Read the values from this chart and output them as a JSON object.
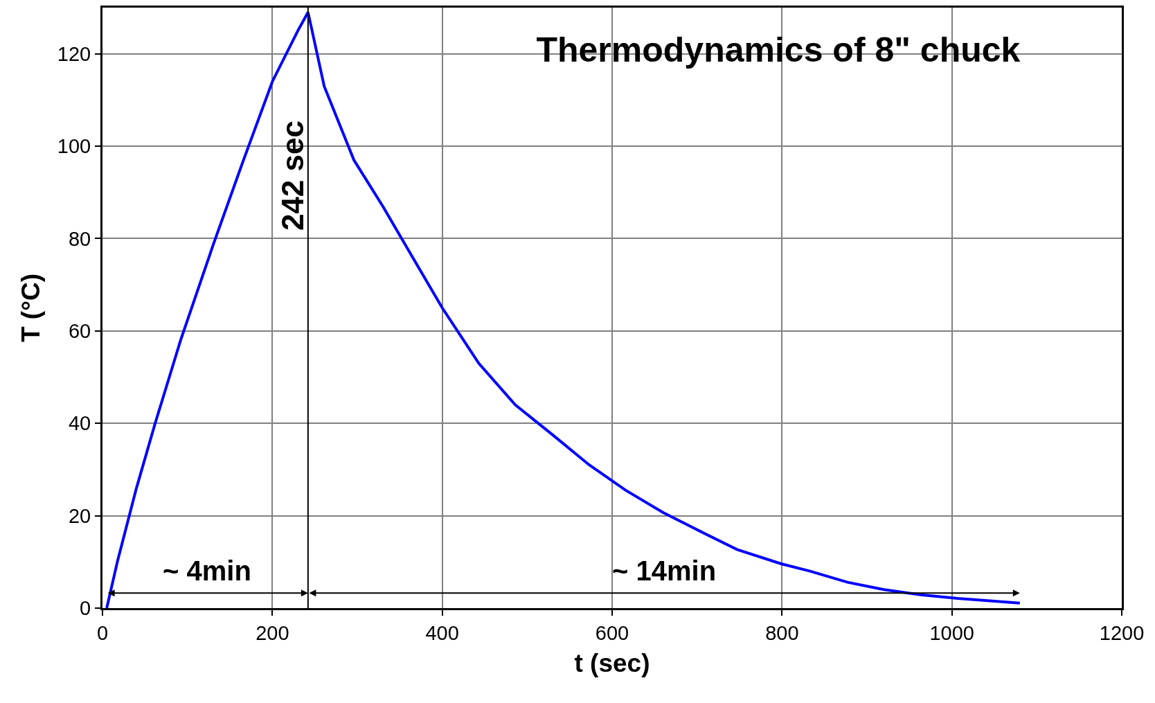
{
  "chart_data": {
    "type": "line",
    "title": "Thermodynamics of 8\" chuck",
    "xlabel": "t (sec)",
    "ylabel": "T (°C)",
    "series": [
      {
        "color": "#0000ff",
        "x": [
          5,
          18,
          40,
          62,
          92,
          131,
          166,
          200,
          230,
          242,
          261,
          296,
          330,
          365,
          400,
          443,
          486,
          530,
          573,
          616,
          660,
          703,
          747,
          799,
          833,
          877,
          920,
          963,
          1007,
          1080
        ],
        "values": [
          0,
          10.4,
          26,
          40,
          58,
          79,
          97,
          114,
          125,
          129,
          113,
          97,
          87,
          76,
          65,
          53,
          44,
          37.5,
          31,
          25.5,
          20.7,
          16.7,
          12.7,
          9.6,
          8,
          5.6,
          4,
          2.9,
          2.1,
          1.1
        ]
      }
    ],
    "xlim": [
      0,
      1200
    ],
    "xticks": [
      0,
      200,
      400,
      600,
      800,
      1000,
      1200
    ],
    "ylim": [
      0,
      130
    ],
    "yticks": [
      0,
      20,
      40,
      60,
      80,
      100,
      120
    ],
    "grid": true,
    "marker": "none",
    "line_style": "solid",
    "ref_lines": [
      {
        "axis": "x",
        "value": 242,
        "label": "242 sec",
        "color": "#000000"
      }
    ],
    "annotations": [
      "~ 4min",
      "~ 14min"
    ]
  }
}
